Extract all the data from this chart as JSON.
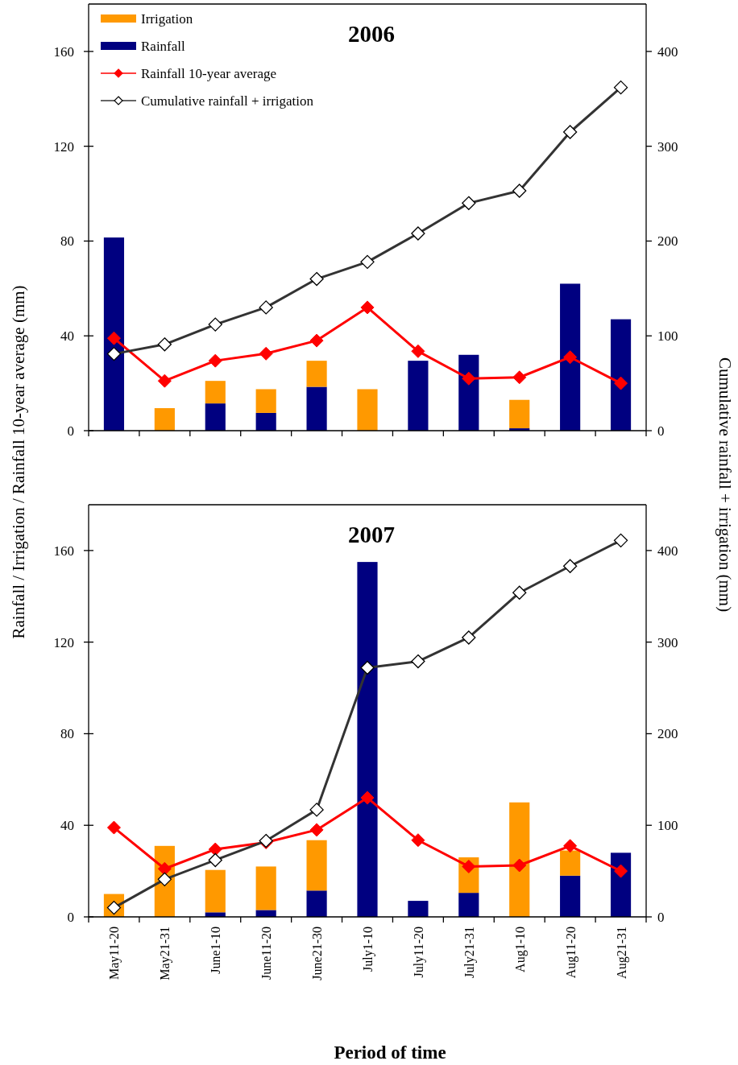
{
  "chart_data": [
    {
      "type": "bar",
      "title": "2006",
      "ylabel": "Rainfall / Irrigation / Rainfall 10-year average (mm)",
      "y2label": "Cumulative rainfall + irrigation (mm)",
      "categories": [
        null,
        null,
        null,
        null,
        null,
        null,
        null,
        null,
        null,
        null,
        null
      ],
      "series": [
        {
          "name": "Rainfall",
          "color": "#000080",
          "values": [
            81.5,
            0,
            11.5,
            7.5,
            18.5,
            0,
            29.5,
            32,
            1,
            62,
            47
          ]
        },
        {
          "name": "Irrigation",
          "color": "#ff9900",
          "values": [
            0,
            9.5,
            9.5,
            10,
            11,
            17.5,
            0,
            0,
            12,
            0,
            0
          ]
        },
        {
          "name": "Rainfall 10-year average",
          "type": "line",
          "color": "#ff0000",
          "values": [
            39,
            21,
            29.5,
            32.5,
            38,
            52,
            33.5,
            22,
            22.5,
            31,
            20
          ]
        },
        {
          "name": "Cumulative rainfall + irrigation",
          "type": "line",
          "axis": "y2",
          "color": "#333333",
          "values": [
            81,
            91,
            112,
            130,
            160,
            178,
            208,
            240,
            253,
            315,
            362
          ]
        }
      ],
      "stacked": true,
      "ylim": [
        0,
        180
      ],
      "yticks": [
        0,
        40,
        80,
        120,
        160
      ],
      "y2lim": [
        0,
        450
      ],
      "y2ticks": [
        0,
        100,
        200,
        300,
        400
      ],
      "legend": "top left",
      "tick_labels": "y",
      "marker": "diamond",
      "line_style": "solid"
    },
    {
      "type": "bar",
      "title": "2007",
      "xlabel": "Period of time",
      "categories": [
        "May11-20",
        "May21-31",
        "June1-10",
        "June11-20",
        "June21-30",
        "July1-10",
        "July11-20",
        "July21-31",
        "Aug1-10",
        "Aug11-20",
        "Aug21-31"
      ],
      "series": [
        {
          "color": "#000080",
          "values": [
            0,
            0,
            2,
            3,
            11.5,
            155,
            7,
            10.5,
            0,
            18,
            28
          ]
        },
        {
          "color": "#ff9900",
          "values": [
            10,
            31,
            18.5,
            19,
            22,
            0,
            0,
            15.5,
            50,
            11,
            0
          ]
        },
        {
          "type": "line",
          "color": "#ff0000",
          "values": [
            39,
            21,
            29.5,
            32.5,
            38,
            52,
            33.5,
            22,
            22.5,
            31,
            20
          ]
        },
        {
          "type": "line",
          "axis": "y2",
          "color": "#333333",
          "values": [
            10,
            41,
            62,
            83,
            117,
            272,
            279,
            305,
            354,
            383,
            411
          ]
        }
      ],
      "stacked": true,
      "ylim": [
        0,
        180
      ],
      "yticks": [
        0,
        40,
        80,
        120,
        160
      ],
      "y2lim": [
        0,
        450
      ],
      "y2ticks": [
        0,
        100,
        200,
        300,
        400
      ],
      "marker": "diamond",
      "line_style": "solid"
    }
  ]
}
